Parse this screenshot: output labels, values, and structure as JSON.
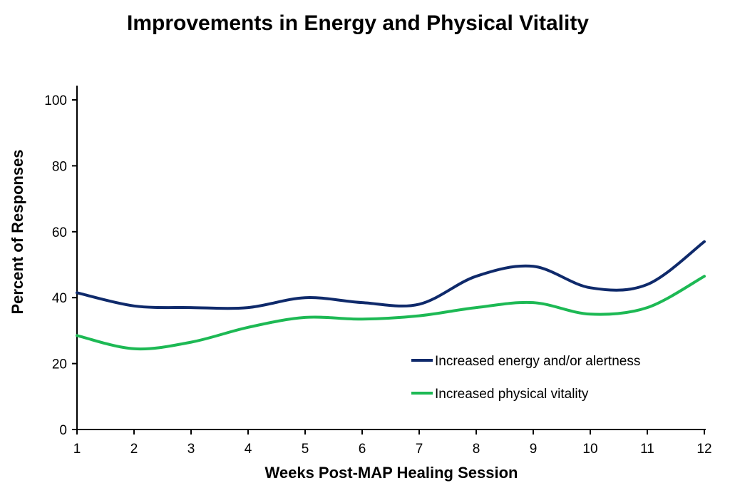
{
  "chart_data": {
    "type": "line",
    "title": "Improvements in Energy and Physical Vitality",
    "xlabel": "Weeks Post-MAP Healing Session",
    "ylabel": "Percent of Responses",
    "x": [
      1,
      2,
      3,
      4,
      5,
      6,
      7,
      8,
      9,
      10,
      11,
      12
    ],
    "xticks": [
      "1",
      "2",
      "3",
      "4",
      "5",
      "6",
      "7",
      "8",
      "9",
      "10",
      "11",
      "12"
    ],
    "ylim": [
      0,
      100
    ],
    "yticks": [
      "0",
      "20",
      "40",
      "60",
      "80",
      "100"
    ],
    "grid": false,
    "legend_position": "bottom-right",
    "series": [
      {
        "name": "Increased energy and/or alertness",
        "color": "#0f2a6b",
        "values": [
          41.5,
          37.5,
          37,
          37,
          40,
          38.5,
          38,
          46.5,
          49.5,
          43,
          44,
          57
        ]
      },
      {
        "name": "Increased physical vitality",
        "color": "#1db954",
        "values": [
          28.5,
          24.5,
          26.5,
          31,
          34,
          33.5,
          34.5,
          37,
          38.5,
          35,
          37,
          46.5
        ]
      }
    ]
  }
}
